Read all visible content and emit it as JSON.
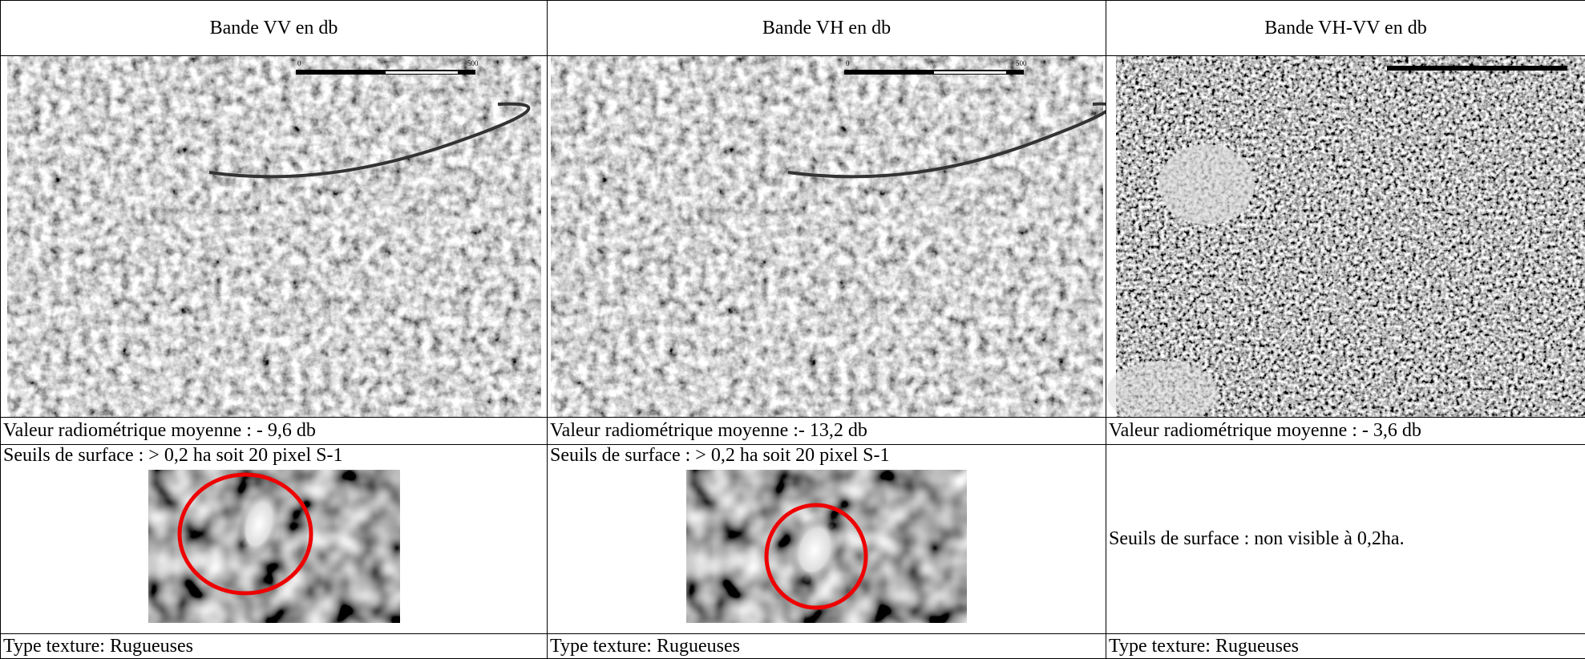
{
  "table": {
    "headers": [
      "Bande VV en db",
      "Bande VH en db",
      "Bande VH-VV en db"
    ],
    "scale_labels": [
      "0",
      "500"
    ],
    "values": [
      "Valeur radiométrique moyenne : - 9,6 db",
      "Valeur radiométrique moyenne :- 13,2 db",
      "Valeur radiométrique moyenne : - 3,6 db"
    ],
    "surfaces": [
      "Seuils de surface : > 0,2 ha soit 20 pixel S-1",
      "Seuils de surface : > 0,2 ha soit 20 pixel S-1",
      "Seuils de surface : non visible à 0,2ha."
    ],
    "textures": [
      "Type texture: Rugueuses",
      "Type texture: Rugueuses",
      "Type texture: Rugueuses"
    ]
  }
}
